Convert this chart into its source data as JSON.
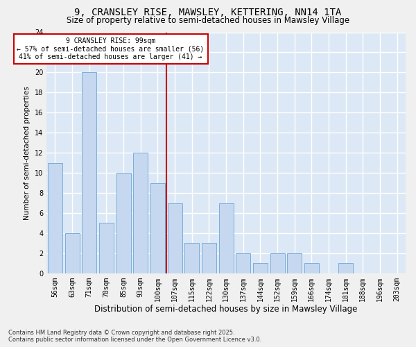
{
  "title": "9, CRANSLEY RISE, MAWSLEY, KETTERING, NN14 1TA",
  "subtitle": "Size of property relative to semi-detached houses in Mawsley Village",
  "xlabel": "Distribution of semi-detached houses by size in Mawsley Village",
  "ylabel": "Number of semi-detached properties",
  "categories": [
    "56sqm",
    "63sqm",
    "71sqm",
    "78sqm",
    "85sqm",
    "93sqm",
    "100sqm",
    "107sqm",
    "115sqm",
    "122sqm",
    "130sqm",
    "137sqm",
    "144sqm",
    "152sqm",
    "159sqm",
    "166sqm",
    "174sqm",
    "181sqm",
    "188sqm",
    "196sqm",
    "203sqm"
  ],
  "values": [
    11,
    4,
    20,
    5,
    10,
    12,
    9,
    7,
    3,
    3,
    7,
    2,
    1,
    2,
    2,
    1,
    0,
    1,
    0,
    0,
    0
  ],
  "bar_color": "#c5d8f0",
  "bar_edge_color": "#7aadda",
  "reference_line_idx": 6,
  "reference_label": "9 CRANSLEY RISE: 99sqm",
  "annotation_line1": "← 57% of semi-detached houses are smaller (56)",
  "annotation_line2": "41% of semi-detached houses are larger (41) →",
  "annotation_box_facecolor": "#ffffff",
  "annotation_box_edgecolor": "#cc0000",
  "vline_color": "#cc0000",
  "ylim": [
    0,
    24
  ],
  "yticks": [
    0,
    2,
    4,
    6,
    8,
    10,
    12,
    14,
    16,
    18,
    20,
    22,
    24
  ],
  "background_color": "#dce8f5",
  "grid_color": "#ffffff",
  "fig_facecolor": "#f0f0f0",
  "footer_line1": "Contains HM Land Registry data © Crown copyright and database right 2025.",
  "footer_line2": "Contains public sector information licensed under the Open Government Licence v3.0.",
  "title_fontsize": 10,
  "subtitle_fontsize": 8.5,
  "xlabel_fontsize": 8.5,
  "ylabel_fontsize": 7.5,
  "tick_fontsize": 7,
  "annotation_fontsize": 7,
  "footer_fontsize": 6
}
